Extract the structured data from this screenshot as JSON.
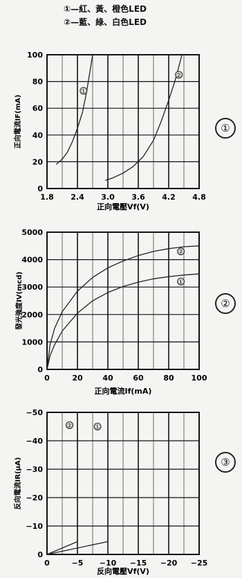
{
  "legend": {
    "items": [
      {
        "num": "①",
        "text": "—紅、黃、橙色LED"
      },
      {
        "num": "②",
        "text": "—藍、綠、白色LED"
      }
    ]
  },
  "chart_data": [
    {
      "type": "line",
      "panel_mark": "①",
      "xlabel": "正向電壓Vf(V)",
      "ylabel": "正向電流IF(mA)",
      "xlim": [
        1.8,
        4.8
      ],
      "ylim": [
        0,
        100
      ],
      "xticks": [
        "1.8",
        "2.4",
        "3.0",
        "3.6",
        "4.2",
        "4.8"
      ],
      "yticks": [
        "0",
        "20",
        "40",
        "60",
        "80",
        "100"
      ],
      "grid": true,
      "series": [
        {
          "label_mark": "①",
          "label_at": [
            2.52,
            73
          ],
          "points": [
            [
              1.98,
              18
            ],
            [
              2.1,
              22
            ],
            [
              2.2,
              27
            ],
            [
              2.3,
              35
            ],
            [
              2.4,
              45
            ],
            [
              2.5,
              57
            ],
            [
              2.58,
              72
            ],
            [
              2.64,
              86
            ],
            [
              2.7,
              100
            ]
          ]
        },
        {
          "label_mark": "②",
          "label_at": [
            4.4,
            85
          ],
          "points": [
            [
              2.95,
              6
            ],
            [
              3.1,
              8
            ],
            [
              3.3,
              11.5
            ],
            [
              3.5,
              16.5
            ],
            [
              3.7,
              24
            ],
            [
              3.9,
              36
            ],
            [
              4.05,
              50
            ],
            [
              4.2,
              66
            ],
            [
              4.32,
              80
            ],
            [
              4.42,
              94
            ],
            [
              4.46,
              100
            ]
          ]
        }
      ]
    },
    {
      "type": "line",
      "panel_mark": "②",
      "xlabel": "正向電流If(mA)",
      "ylabel": "發光強度IV(mcd)",
      "xlim": [
        0,
        100
      ],
      "ylim": [
        0,
        5000
      ],
      "xticks": [
        "0",
        "20",
        "40",
        "60",
        "80",
        "100"
      ],
      "yticks": [
        "0",
        "1000",
        "2000",
        "3000",
        "4000",
        "5000"
      ],
      "grid": true,
      "series": [
        {
          "label_mark": "②",
          "label_at": [
            88,
            4300
          ],
          "points": [
            [
              0,
              0
            ],
            [
              2,
              900
            ],
            [
              5,
              1500
            ],
            [
              10,
              2100
            ],
            [
              20,
              2850
            ],
            [
              30,
              3350
            ],
            [
              40,
              3700
            ],
            [
              50,
              3950
            ],
            [
              60,
              4150
            ],
            [
              70,
              4300
            ],
            [
              80,
              4400
            ],
            [
              90,
              4470
            ],
            [
              100,
              4500
            ]
          ]
        },
        {
          "label_mark": "①",
          "label_at": [
            88,
            3200
          ],
          "points": [
            [
              0,
              0
            ],
            [
              2,
              500
            ],
            [
              5,
              900
            ],
            [
              10,
              1400
            ],
            [
              20,
              2050
            ],
            [
              30,
              2500
            ],
            [
              40,
              2800
            ],
            [
              50,
              3020
            ],
            [
              60,
              3180
            ],
            [
              70,
              3300
            ],
            [
              80,
              3380
            ],
            [
              90,
              3440
            ],
            [
              100,
              3480
            ]
          ]
        }
      ]
    },
    {
      "type": "line",
      "panel_mark": "③",
      "xlabel": "反向電壓Vf(V)",
      "ylabel": "反向電流IR(μA)",
      "xlim": [
        0,
        -25
      ],
      "ylim": [
        0,
        -50
      ],
      "xticks": [
        "0",
        "−5",
        "−10",
        "−15",
        "−20",
        "−25"
      ],
      "yticks": [
        "0",
        "−10",
        "−20",
        "−30",
        "−40",
        "−50"
      ],
      "grid": true,
      "series": [
        {
          "label_mark": "②",
          "label_at": [
            -3.7,
            -45.5
          ],
          "points": [
            [
              0,
              0
            ],
            [
              -5,
              -4.5
            ]
          ]
        },
        {
          "label_mark": "①",
          "label_at": [
            -8.3,
            -45
          ],
          "points": [
            [
              0,
              0
            ],
            [
              -10,
              -4.5
            ]
          ]
        }
      ]
    }
  ]
}
